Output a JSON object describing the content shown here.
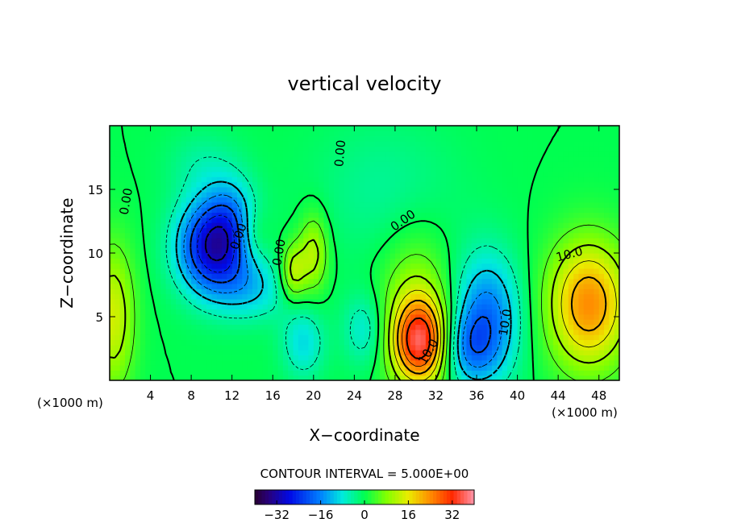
{
  "chart_data": {
    "type": "heatmap",
    "title": "vertical velocity",
    "xlabel": "X−coordinate",
    "ylabel": "Z−coordinate",
    "x_unit_left": "(×1000 m)",
    "x_unit_right": "(×1000 m)",
    "xlim": [
      0,
      50
    ],
    "ylim": [
      0,
      20
    ],
    "xticks": [
      4,
      8,
      12,
      16,
      20,
      24,
      28,
      32,
      36,
      40,
      44,
      48
    ],
    "yticks": [
      5,
      10,
      15
    ],
    "contour_interval_label": "CONTOUR INTERVAL = 5.000E+00",
    "contour_interval": 5.0,
    "colorbar_range": [
      -40,
      40
    ],
    "colorbar_ticks": [
      -32,
      -16,
      0,
      16,
      32
    ],
    "colorbar_tick_labels": [
      "−32",
      "−16",
      "0",
      "16",
      "32"
    ],
    "contour_labels": [
      {
        "text": "0.00",
        "x": 2.0,
        "y": 14.0,
        "angle": -80
      },
      {
        "text": "0.00",
        "x": 13.0,
        "y": 11.2,
        "angle": -70
      },
      {
        "text": "0.00",
        "x": 17.0,
        "y": 10.0,
        "angle": -80
      },
      {
        "text": "0.00",
        "x": 23.0,
        "y": 17.8,
        "angle": -85
      },
      {
        "text": "0.00",
        "x": 29.0,
        "y": 12.3,
        "angle": -35
      },
      {
        "text": "10.0",
        "x": 45.2,
        "y": 9.6,
        "angle": -15
      },
      {
        "text": "10.0",
        "x": 39.2,
        "y": 4.5,
        "angle": -80
      },
      {
        "text": "10.0",
        "x": 31.6,
        "y": 2.1,
        "angle": -60
      }
    ],
    "features": [
      {
        "x": 10.0,
        "z": 10.5,
        "amp": -28,
        "sx": 2.4,
        "sz": 2.6
      },
      {
        "x": 12.0,
        "z": 12.5,
        "amp": -10,
        "sx": 1.8,
        "sz": 2.5
      },
      {
        "x": 14.0,
        "z": 7.2,
        "amp": -9,
        "sx": 2.6,
        "sz": 1.8
      },
      {
        "x": 19.0,
        "z": 3.0,
        "amp": -9,
        "sx": 1.5,
        "sz": 2.0
      },
      {
        "x": 25.0,
        "z": 4.0,
        "amp": -8,
        "sx": 1.5,
        "sz": 2.0
      },
      {
        "x": 37.0,
        "z": 5.0,
        "amp": -17,
        "sx": 2.3,
        "sz": 3.5
      },
      {
        "x": 35.0,
        "z": 2.5,
        "amp": -11,
        "sx": 2.0,
        "sz": 2.0
      },
      {
        "x": 27.0,
        "z": 15.0,
        "amp": -4,
        "sx": 5.0,
        "sz": 4.0
      },
      {
        "x": 9.0,
        "z": 17.0,
        "amp": -4,
        "sx": 2.5,
        "sz": 2.0
      },
      {
        "x": 30.5,
        "z": 3.0,
        "amp": 30,
        "sx": 1.9,
        "sz": 2.3
      },
      {
        "x": 30.0,
        "z": 6.0,
        "amp": 10,
        "sx": 2.4,
        "sz": 4.0
      },
      {
        "x": 47.0,
        "z": 6.0,
        "amp": 24,
        "sx": 2.8,
        "sz": 3.5
      },
      {
        "x": 18.0,
        "z": 8.5,
        "amp": 13,
        "sx": 0.9,
        "sz": 1.6
      },
      {
        "x": 20.0,
        "z": 10.0,
        "amp": 12,
        "sx": 1.0,
        "sz": 2.2
      },
      {
        "x": 0.3,
        "z": 5.0,
        "amp": 14,
        "sx": 1.5,
        "sz": 4.0
      },
      {
        "x": 14.0,
        "z": 11.5,
        "amp": 6,
        "sx": 1.2,
        "sz": 1.5
      }
    ]
  }
}
